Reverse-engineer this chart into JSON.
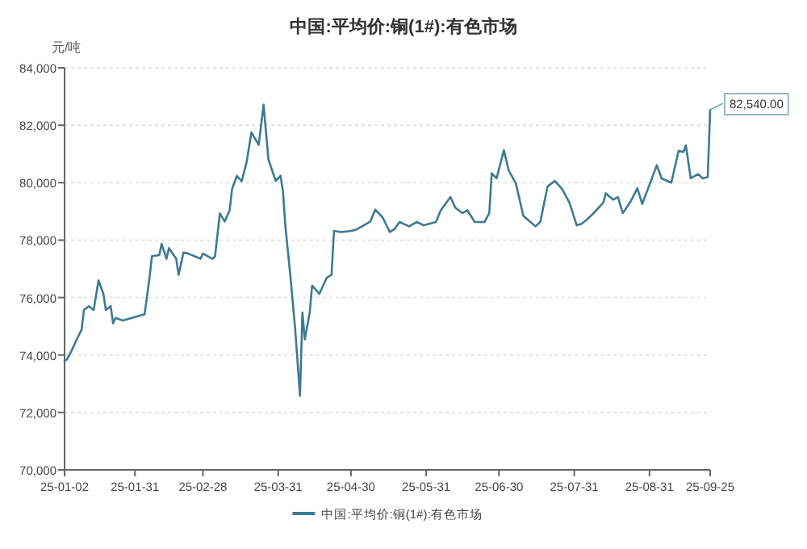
{
  "chart_data": {
    "type": "line",
    "title": "中国:平均价:铜(1#):有色市场",
    "ylabel": "元/吨",
    "xlim": [
      "--01-02",
      "--09-25"
    ],
    "xticks": [
      {
        "value": "--01-02",
        "label": "25-01-02"
      },
      {
        "value": "--01-31",
        "label": "25-01-31"
      },
      {
        "value": "--02-28",
        "label": "25-02-28"
      },
      {
        "value": "--03-31",
        "label": "25-03-31"
      },
      {
        "value": "--04-30",
        "label": "25-04-30"
      },
      {
        "value": "--05-31",
        "label": "25-05-31"
      },
      {
        "value": "--06-30",
        "label": "25-06-30"
      },
      {
        "value": "--07-31",
        "label": "25-07-31"
      },
      {
        "value": "--08-31",
        "label": "25-08-31"
      },
      {
        "value": "--09-25",
        "label": "25-09-25"
      }
    ],
    "ylim": [
      70000,
      84000
    ],
    "yticks": [
      {
        "value": 70000,
        "label": "70,000"
      },
      {
        "value": 72000,
        "label": "72,000"
      },
      {
        "value": 74000,
        "label": "74,000"
      },
      {
        "value": 76000,
        "label": "76,000"
      },
      {
        "value": 78000,
        "label": "78,000"
      },
      {
        "value": 80000,
        "label": "80,000"
      },
      {
        "value": 82000,
        "label": "82,000"
      },
      {
        "value": 84000,
        "label": "84,000"
      }
    ],
    "grid": "y",
    "legend": "bottom",
    "marker": "none",
    "line_style": "solid",
    "annotations": [
      {
        "text": "82,540.00",
        "x": "--09-25",
        "y": 82540
      }
    ],
    "x": [
      "--01-02",
      "--01-03",
      "--01-05",
      "--01-07",
      "--01-09",
      "--01-10",
      "--01-12",
      "--01-14",
      "--01-16",
      "--01-18",
      "--01-19",
      "--01-21",
      "--01-22",
      "--01-23",
      "--01-26",
      "--02-04",
      "--02-06",
      "--02-07",
      "--02-10",
      "--02-11",
      "--02-13",
      "--02-14",
      "--02-17",
      "--02-18",
      "--02-20",
      "--02-22",
      "--02-27",
      "--02-28",
      "--03-04",
      "--03-05",
      "--03-07",
      "--03-09",
      "--03-11",
      "--03-12",
      "--03-14",
      "--03-16",
      "--03-18",
      "--03-20",
      "--03-23",
      "--03-25",
      "--03-27",
      "--03-30",
      "--04-01",
      "--04-02",
      "--04-03",
      "--04-05",
      "--04-07",
      "--04-09",
      "--04-10",
      "--04-11",
      "--04-13",
      "--04-14",
      "--04-17",
      "--04-20",
      "--04-22",
      "--04-23",
      "--04-26",
      "--04-30",
      "--05-02",
      "--05-05",
      "--05-08",
      "--05-10",
      "--05-13",
      "--05-16",
      "--05-18",
      "--05-20",
      "--05-24",
      "--05-27",
      "--05-30",
      "--06-04",
      "--06-06",
      "--06-10",
      "--06-12",
      "--06-15",
      "--06-17",
      "--06-20",
      "--06-24",
      "--06-26",
      "--06-27",
      "--06-29",
      "--07-02",
      "--07-04",
      "--07-07",
      "--07-10",
      "--07-12",
      "--07-15",
      "--07-17",
      "--07-20",
      "--07-23",
      "--07-26",
      "--07-29",
      "--08-01",
      "--08-03",
      "--08-05",
      "--08-08",
      "--08-12",
      "--08-13",
      "--08-16",
      "--08-18",
      "--08-20",
      "--08-23",
      "--08-26",
      "--08-28",
      "--09-01",
      "--09-03",
      "--09-05",
      "--09-09",
      "--09-12",
      "--09-14",
      "--09-15",
      "--09-17",
      "--09-20",
      "--09-22",
      "--09-24",
      "--09-25"
    ],
    "series": [
      {
        "name": "中国:平均价:铜(1#):有色市场",
        "color": "#3d7a94",
        "values": [
          73800,
          73850,
          74170,
          74540,
          74880,
          75570,
          75700,
          75570,
          76600,
          76130,
          75570,
          75700,
          75100,
          75290,
          75200,
          75420,
          76690,
          77440,
          77480,
          77870,
          77350,
          77720,
          77350,
          76790,
          77570,
          77530,
          77350,
          77530,
          77350,
          77440,
          78930,
          78650,
          79030,
          79770,
          80240,
          80050,
          80710,
          81750,
          81320,
          82720,
          80810,
          80060,
          80240,
          79680,
          78470,
          76790,
          74920,
          72580,
          75480,
          74540,
          75480,
          76410,
          76130,
          76690,
          76790,
          78320,
          78280,
          78320,
          78360,
          78500,
          78650,
          79060,
          78800,
          78280,
          78390,
          78630,
          78480,
          78630,
          78520,
          78630,
          79040,
          79500,
          79130,
          78940,
          79040,
          78630,
          78630,
          78940,
          80330,
          80150,
          81130,
          80430,
          79960,
          78850,
          78700,
          78480,
          78630,
          79870,
          80060,
          79780,
          79310,
          78520,
          78570,
          78700,
          78940,
          79310,
          79630,
          79410,
          79500,
          78940,
          79310,
          79810,
          79260,
          80150,
          80610,
          80150,
          80000,
          81110,
          81070,
          81300,
          80150,
          80300,
          80150,
          80200,
          82540
        ]
      }
    ]
  }
}
